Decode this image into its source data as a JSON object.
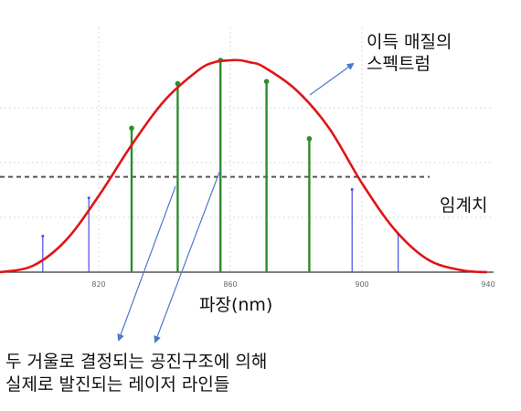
{
  "labels": {
    "gain_spectrum": [
      "이득 매질의",
      "스펙트럼"
    ],
    "threshold": "임계치",
    "x_axis_title": "파장(nm)",
    "caption": [
      "두 거울로 결정되는 공진구조에 의해",
      "실제로 발진되는 레이저 라인들"
    ]
  },
  "colors": {
    "gain_curve": "#e11414",
    "lasing_line": "#2e8b2e",
    "non_lasing_line": "#4a4ae0",
    "threshold_line": "#555555",
    "annotation_arrow": "#4a7bc8",
    "grid": "#d9d9d9"
  },
  "chart_data": {
    "type": "line",
    "x_unit": "nm",
    "xlim": [
      790,
      940
    ],
    "x_ticks": [
      820,
      860,
      900,
      940
    ],
    "grid": true,
    "threshold_level": 0.45,
    "gain_curve": {
      "x": [
        790,
        800,
        810,
        820,
        830,
        840,
        850,
        855,
        860,
        863,
        866,
        870,
        880,
        890,
        900,
        910,
        920,
        930,
        938
      ],
      "y": [
        0.0,
        0.03,
        0.15,
        0.36,
        0.6,
        0.81,
        0.95,
        0.99,
        1.0,
        1.0,
        0.99,
        0.97,
        0.86,
        0.68,
        0.42,
        0.2,
        0.06,
        0.01,
        0.0
      ]
    },
    "cavity_modes": [
      {
        "x": 803,
        "height": 0.17,
        "lasing": false
      },
      {
        "x": 817,
        "height": 0.35,
        "lasing": false
      },
      {
        "x": 830,
        "height": 0.68,
        "lasing": true
      },
      {
        "x": 844,
        "height": 0.89,
        "lasing": true
      },
      {
        "x": 857,
        "height": 1.0,
        "lasing": true
      },
      {
        "x": 871,
        "height": 0.9,
        "lasing": true
      },
      {
        "x": 884,
        "height": 0.63,
        "lasing": true
      },
      {
        "x": 897,
        "height": 0.39,
        "lasing": false
      },
      {
        "x": 911,
        "height": 0.18,
        "lasing": false
      }
    ]
  }
}
